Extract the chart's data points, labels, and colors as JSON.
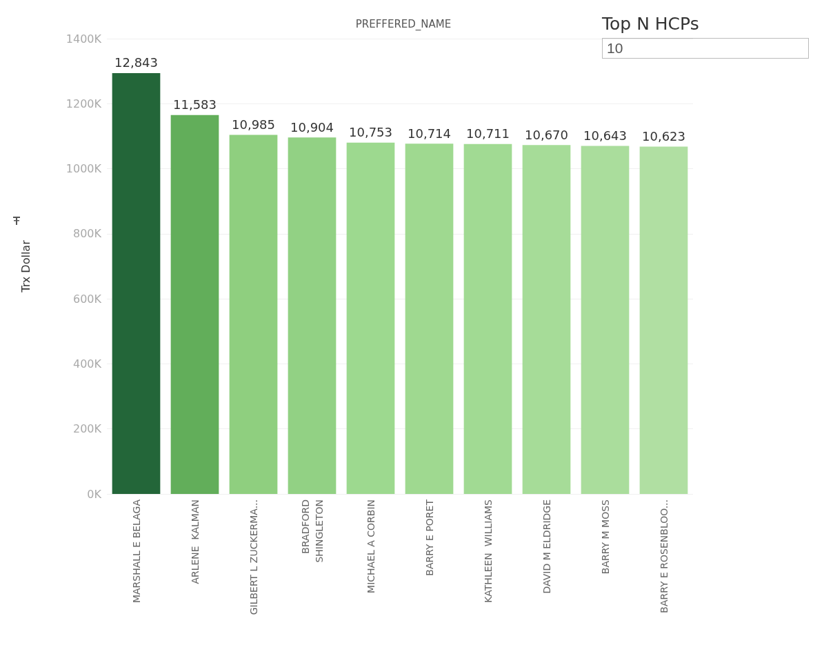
{
  "chart_data": {
    "type": "bar",
    "xlabel": "PREFFERED_NAME",
    "ylabel": "Trx Dollar",
    "categories": [
      "MARSHALL E BELAGA",
      "ARLENE  KALMAN",
      "GILBERT L ZUCKERMA...",
      "BRADFORD\nSHINGLETON",
      "MICHAEL A CORBIN",
      "BARRY E PORET",
      "KATHLEEN  WILLIAMS",
      "DAVID M ELDRIDGE",
      "BARRY M MOSS",
      "BARRY E ROSENBLOO..."
    ],
    "values": [
      1294000,
      1165000,
      1104000,
      1096000,
      1080000,
      1077000,
      1076000,
      1073000,
      1070000,
      1068000
    ],
    "colors": [
      "#236639",
      "#62ae5a",
      "#8fcf7f",
      "#92d184",
      "#9dd98f",
      "#9fd990",
      "#a1da93",
      "#a6dc98",
      "#aadd9c",
      "#b0dfa2"
    ],
    "ylim": [
      0,
      1400000
    ],
    "yticks": [
      {
        "value": 0,
        "label": "0K"
      },
      {
        "value": 200000,
        "label": "200K"
      },
      {
        "value": 400000,
        "label": "400K"
      },
      {
        "value": 600000,
        "label": "600K"
      },
      {
        "value": 800000,
        "label": "800K"
      },
      {
        "value": 1000000,
        "label": "1000K"
      },
      {
        "value": 1200000,
        "label": "1200K"
      },
      {
        "value": 1400000,
        "label": "1400K"
      }
    ],
    "grid": "y",
    "annotations": [
      "Top N HCPs",
      "10",
      {
        "text": "12,843",
        "x": "MARSHALL E BELAGA",
        "y": 1294000
      },
      {
        "text": "11,583",
        "x": "ARLENE  KALMAN",
        "y": 1165000
      },
      {
        "text": "10,985",
        "x": "GILBERT L ZUCKERMA...",
        "y": 1104000
      },
      {
        "text": "10,904",
        "x": "BRADFORD\nSHINGLETON",
        "y": 1096000
      },
      {
        "text": "10,753",
        "x": "MICHAEL A CORBIN",
        "y": 1080000
      },
      {
        "text": "10,714",
        "x": "BARRY E PORET",
        "y": 1077000
      },
      {
        "text": "10,711",
        "x": "KATHLEEN  WILLIAMS",
        "y": 1076000
      },
      {
        "text": "10,670",
        "x": "DAVID M ELDRIDGE",
        "y": 1073000
      },
      {
        "text": "10,643",
        "x": "BARRY M MOSS",
        "y": 1070000
      },
      {
        "text": "10,623",
        "x": "BARRY E ROSENBLOO...",
        "y": 1068000
      }
    ]
  }
}
